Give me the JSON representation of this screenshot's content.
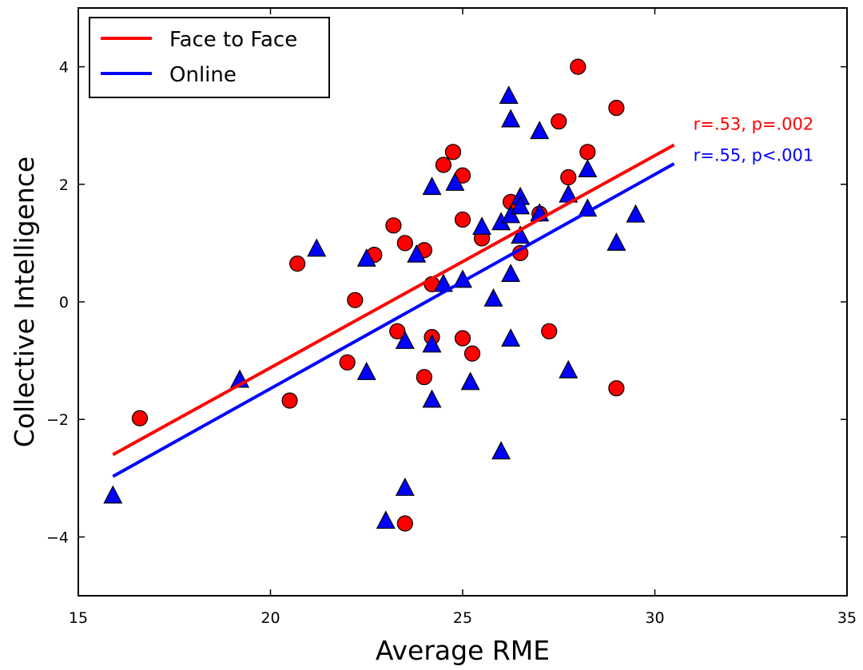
{
  "chart_data": {
    "type": "scatter",
    "xlabel": "Average RME",
    "ylabel": "Collective Intelligence",
    "xlim": [
      15,
      35
    ],
    "ylim": [
      -5,
      5
    ],
    "x_ticks": [
      15,
      20,
      25,
      30,
      35
    ],
    "y_ticks": [
      -4,
      -2,
      0,
      2,
      4
    ],
    "y_tick_labels": [
      "−4",
      "−2",
      "0",
      "2",
      "4"
    ],
    "grid": false,
    "legend_position": "top-left",
    "series": [
      {
        "name": "Face to Face",
        "color": "#ff0000",
        "marker": "circle",
        "points": [
          [
            16.6,
            -1.98
          ],
          [
            20.5,
            -1.68
          ],
          [
            20.7,
            0.65
          ],
          [
            22.0,
            -1.03
          ],
          [
            22.2,
            0.03
          ],
          [
            22.7,
            0.8
          ],
          [
            23.2,
            1.3
          ],
          [
            23.3,
            -0.5
          ],
          [
            23.5,
            1.0
          ],
          [
            23.5,
            -3.77
          ],
          [
            24.0,
            0.88
          ],
          [
            24.0,
            -1.28
          ],
          [
            24.2,
            0.3
          ],
          [
            24.2,
            -0.6
          ],
          [
            24.5,
            2.33
          ],
          [
            24.75,
            2.55
          ],
          [
            25.0,
            2.15
          ],
          [
            25.0,
            1.4
          ],
          [
            25.0,
            -0.62
          ],
          [
            25.25,
            -0.88
          ],
          [
            25.5,
            1.08
          ],
          [
            26.25,
            1.7
          ],
          [
            26.5,
            0.83
          ],
          [
            27.0,
            1.5
          ],
          [
            27.25,
            -0.5
          ],
          [
            27.5,
            3.07
          ],
          [
            27.75,
            2.12
          ],
          [
            28.0,
            4.0
          ],
          [
            28.25,
            2.55
          ],
          [
            29.0,
            3.3
          ],
          [
            29.0,
            -1.47
          ]
        ],
        "fit": {
          "x": [
            15.9,
            30.5
          ],
          "y": [
            -2.6,
            2.67
          ]
        }
      },
      {
        "name": "Online",
        "color": "#0000ff",
        "marker": "triangle",
        "points": [
          [
            15.9,
            -3.3
          ],
          [
            19.2,
            -1.33
          ],
          [
            21.2,
            0.9
          ],
          [
            22.5,
            0.73
          ],
          [
            22.5,
            -1.2
          ],
          [
            23.0,
            -3.73
          ],
          [
            23.5,
            -0.67
          ],
          [
            23.5,
            -3.17
          ],
          [
            23.8,
            0.8
          ],
          [
            24.2,
            1.95
          ],
          [
            24.2,
            -0.73
          ],
          [
            24.2,
            -1.67
          ],
          [
            24.5,
            0.3
          ],
          [
            24.8,
            2.02
          ],
          [
            25.0,
            0.37
          ],
          [
            25.2,
            -1.37
          ],
          [
            25.5,
            1.27
          ],
          [
            25.8,
            0.05
          ],
          [
            26.0,
            1.35
          ],
          [
            26.0,
            -2.55
          ],
          [
            26.2,
            3.5
          ],
          [
            26.25,
            3.1
          ],
          [
            26.25,
            1.47
          ],
          [
            26.25,
            0.47
          ],
          [
            26.25,
            -0.63
          ],
          [
            26.5,
            1.78
          ],
          [
            26.5,
            1.62
          ],
          [
            26.5,
            1.12
          ],
          [
            27.0,
            2.9
          ],
          [
            27.0,
            1.5
          ],
          [
            27.75,
            1.82
          ],
          [
            27.75,
            -1.17
          ],
          [
            28.25,
            2.25
          ],
          [
            28.25,
            1.58
          ],
          [
            29.0,
            1.0
          ],
          [
            29.5,
            1.48
          ]
        ],
        "fit": {
          "x": [
            15.9,
            30.5
          ],
          "y": [
            -2.97,
            2.35
          ]
        }
      }
    ],
    "annotations": [
      {
        "text": "r=.53, p=.002",
        "color": "#ff0000",
        "x": 31.0,
        "y": 2.93
      },
      {
        "text": "r=.55, p<.001",
        "color": "#0000ff",
        "x": 31.0,
        "y": 2.4
      }
    ]
  }
}
